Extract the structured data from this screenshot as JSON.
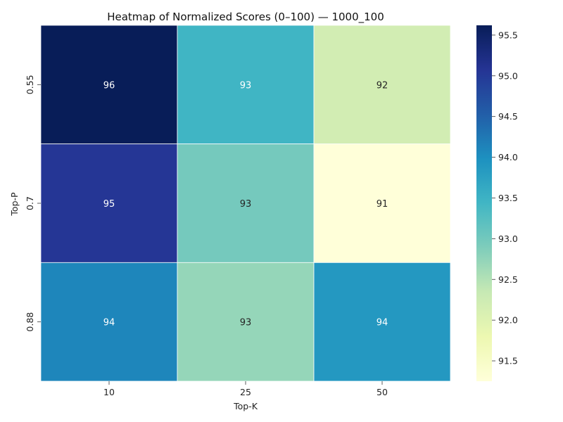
{
  "chart_data": {
    "type": "heatmap",
    "title": "Heatmap of Normalized Scores (0–100) — 1000_100",
    "xlabel": "Top-K",
    "ylabel": "Top-P",
    "x_categories": [
      "10",
      "25",
      "50"
    ],
    "y_categories": [
      "0.55",
      "0.7",
      "0.88"
    ],
    "values": [
      [
        95.62,
        93.45,
        92.18
      ],
      [
        95.05,
        92.98,
        91.25
      ],
      [
        94.1,
        92.72,
        93.88
      ]
    ],
    "cell_labels": [
      [
        "96",
        "93",
        "92"
      ],
      [
        "95",
        "93",
        "91"
      ],
      [
        "94",
        "93",
        "94"
      ]
    ],
    "colormap": "YlGnBu",
    "colorbar": {
      "range": [
        91.25,
        95.62
      ],
      "ticks": [
        91.5,
        92.0,
        92.5,
        93.0,
        93.5,
        94.0,
        94.5,
        95.0,
        95.5
      ],
      "tick_labels": [
        "91.5",
        "92.0",
        "92.5",
        "93.0",
        "93.5",
        "94.0",
        "94.5",
        "95.0",
        "95.5"
      ]
    },
    "grid": false,
    "legend": "right colorbar"
  }
}
